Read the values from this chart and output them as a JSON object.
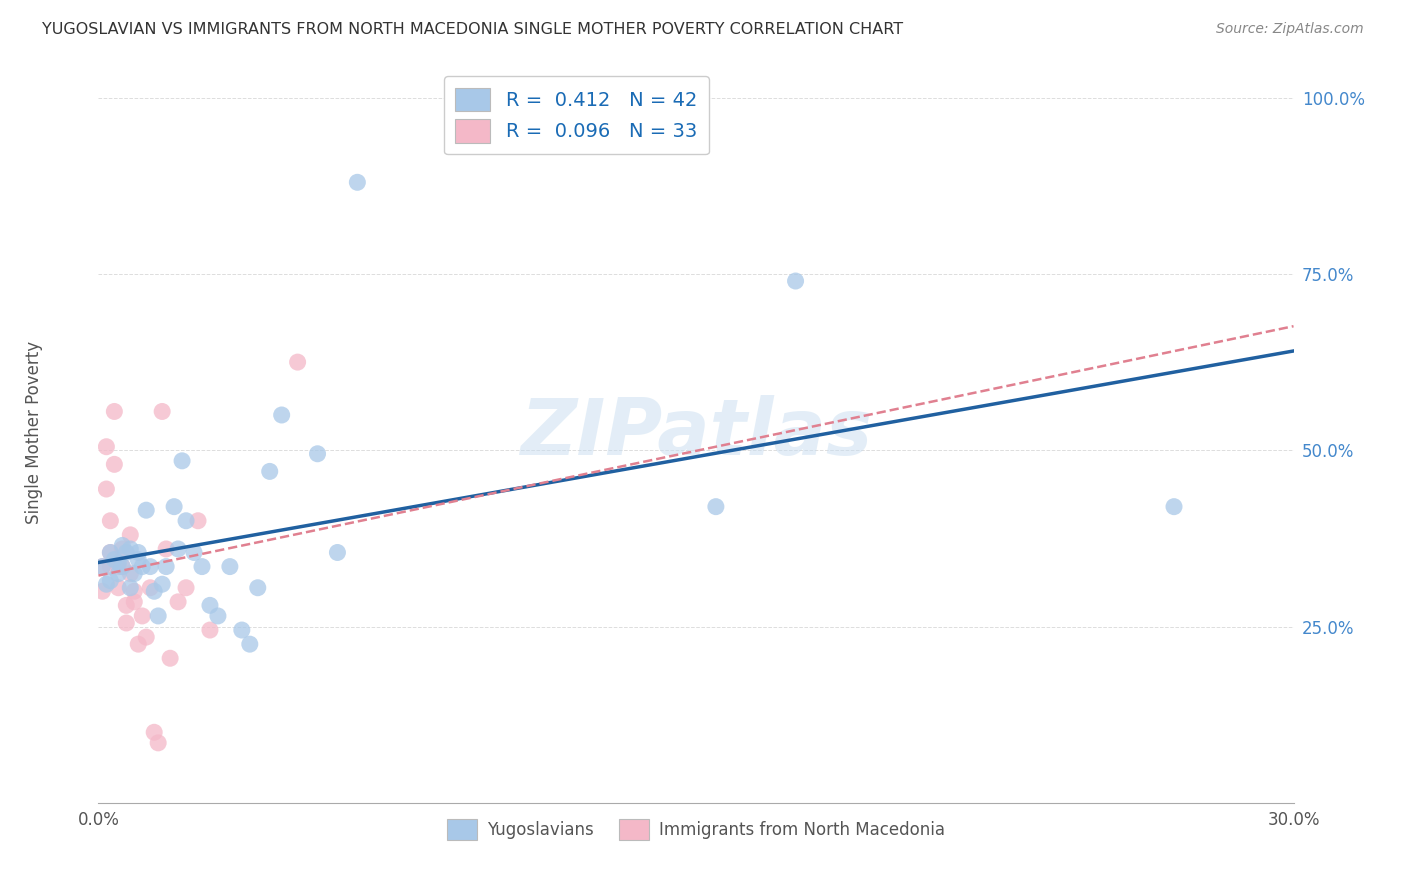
{
  "title": "YUGOSLAVIAN VS IMMIGRANTS FROM NORTH MACEDONIA SINGLE MOTHER POVERTY CORRELATION CHART",
  "source": "Source: ZipAtlas.com",
  "ylabel": "Single Mother Poverty",
  "xlim": [
    0.0,
    0.3
  ],
  "ylim": [
    0.0,
    1.05
  ],
  "y_ticks": [
    0.0,
    0.25,
    0.5,
    0.75,
    1.0
  ],
  "y_tick_labels": [
    "",
    "25.0%",
    "50.0%",
    "75.0%",
    "100.0%"
  ],
  "x_tick_positions": [
    0.0,
    0.1,
    0.2,
    0.3
  ],
  "x_tick_labels": [
    "0.0%",
    "",
    "",
    "30.0%"
  ],
  "blue_color": "#a8c8e8",
  "pink_color": "#f4b8c8",
  "blue_line_color": "#2060a0",
  "pink_line_color": "#e08090",
  "watermark": "ZIPatlas",
  "blue_intercept": 0.31,
  "blue_slope": 1.55,
  "pink_intercept": 0.305,
  "pink_slope": 0.88,
  "blue_x": [
    0.001,
    0.002,
    0.003,
    0.003,
    0.004,
    0.005,
    0.005,
    0.006,
    0.006,
    0.007,
    0.008,
    0.008,
    0.009,
    0.01,
    0.01,
    0.011,
    0.012,
    0.013,
    0.014,
    0.015,
    0.016,
    0.017,
    0.019,
    0.02,
    0.021,
    0.022,
    0.024,
    0.026,
    0.028,
    0.03,
    0.033,
    0.036,
    0.038,
    0.04,
    0.043,
    0.046,
    0.055,
    0.06,
    0.065,
    0.155,
    0.175,
    0.27
  ],
  "blue_y": [
    0.335,
    0.31,
    0.355,
    0.315,
    0.345,
    0.34,
    0.325,
    0.365,
    0.335,
    0.355,
    0.36,
    0.305,
    0.325,
    0.345,
    0.355,
    0.335,
    0.415,
    0.335,
    0.3,
    0.265,
    0.31,
    0.335,
    0.42,
    0.36,
    0.485,
    0.4,
    0.355,
    0.335,
    0.28,
    0.265,
    0.335,
    0.245,
    0.225,
    0.305,
    0.47,
    0.55,
    0.495,
    0.355,
    0.88,
    0.42,
    0.74,
    0.42
  ],
  "pink_x": [
    0.001,
    0.001,
    0.002,
    0.002,
    0.003,
    0.003,
    0.003,
    0.004,
    0.004,
    0.005,
    0.005,
    0.006,
    0.006,
    0.007,
    0.007,
    0.008,
    0.008,
    0.009,
    0.009,
    0.01,
    0.011,
    0.012,
    0.013,
    0.014,
    0.015,
    0.016,
    0.017,
    0.018,
    0.02,
    0.022,
    0.025,
    0.028,
    0.05
  ],
  "pink_y": [
    0.335,
    0.3,
    0.505,
    0.445,
    0.4,
    0.355,
    0.335,
    0.555,
    0.48,
    0.335,
    0.305,
    0.36,
    0.335,
    0.28,
    0.255,
    0.38,
    0.325,
    0.3,
    0.285,
    0.225,
    0.265,
    0.235,
    0.305,
    0.1,
    0.085,
    0.555,
    0.36,
    0.205,
    0.285,
    0.305,
    0.4,
    0.245,
    0.625
  ]
}
